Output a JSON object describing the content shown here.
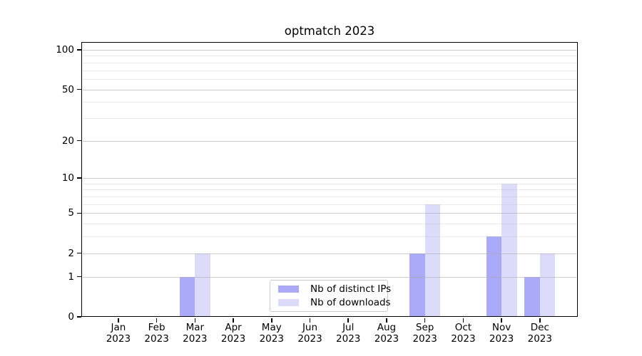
{
  "figure": {
    "title": "optmatch 2023"
  },
  "chart_data": {
    "type": "bar",
    "title": "optmatch 2023",
    "months": [
      "Jan",
      "Feb",
      "Mar",
      "Apr",
      "May",
      "Jun",
      "Jul",
      "Aug",
      "Sep",
      "Oct",
      "Nov",
      "Dec"
    ],
    "year_label": "2023",
    "categories": [
      "Jan 2023",
      "Feb 2023",
      "Mar 2023",
      "Apr 2023",
      "May 2023",
      "Jun 2023",
      "Jul 2023",
      "Aug 2023",
      "Sep 2023",
      "Oct 2023",
      "Nov 2023",
      "Dec 2023"
    ],
    "series": [
      {
        "name": "Nb of distinct IPs",
        "color": "#aaaaf9",
        "values": [
          0,
          0,
          1,
          0,
          0,
          0,
          0,
          0,
          2,
          0,
          3,
          1
        ]
      },
      {
        "name": "Nb of downloads",
        "color": "#dcdcfa",
        "values": [
          0,
          0,
          2,
          0,
          0,
          0,
          0,
          0,
          6,
          0,
          9,
          2
        ]
      }
    ],
    "yscale": "log1p",
    "ylim": [
      0,
      115
    ],
    "yticks": [
      0,
      1,
      2,
      5,
      10,
      20,
      50,
      100
    ],
    "yticks_minor": [
      3,
      4,
      6,
      7,
      8,
      9,
      30,
      40,
      60,
      70,
      80,
      90
    ],
    "grid": true,
    "legend_position": "lower center",
    "colors": {
      "distinct_ips": "#aaaaf9",
      "downloads": "#dcdcfa",
      "grid_major": "#cdcdcd",
      "grid_minor": "#e9e9e9",
      "spine": "#000000"
    }
  }
}
